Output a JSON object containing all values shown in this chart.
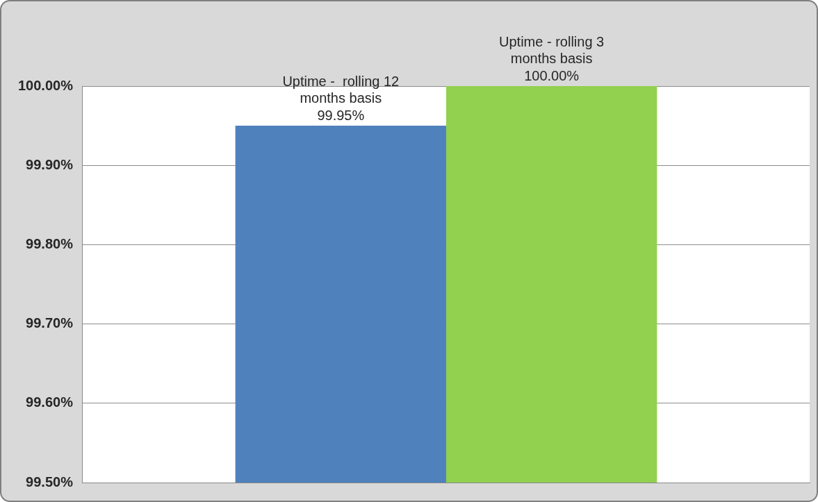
{
  "chart_data": {
    "type": "bar",
    "categories": [
      null
    ],
    "series": [
      {
        "name": "Uptime -  rolling 12 months basis",
        "color": "#4f81bd",
        "values": [
          99.95
        ],
        "value_labels": [
          "99.95%"
        ]
      },
      {
        "name": "Uptime - rolling 3 months basis",
        "color": "#92d050",
        "values": [
          100.0
        ],
        "value_labels": [
          "100.00%"
        ]
      }
    ],
    "ylim": [
      99.5,
      100.0
    ],
    "yticks": [
      {
        "value": 99.5,
        "label": "99.50%"
      },
      {
        "value": 99.6,
        "label": "99.60%"
      },
      {
        "value": 99.7,
        "label": "99.70%"
      },
      {
        "value": 99.8,
        "label": "99.80%"
      },
      {
        "value": 99.9,
        "label": "99.90%"
      },
      {
        "value": 100.0,
        "label": "100.00%"
      }
    ],
    "grid": "y",
    "legend": false
  }
}
